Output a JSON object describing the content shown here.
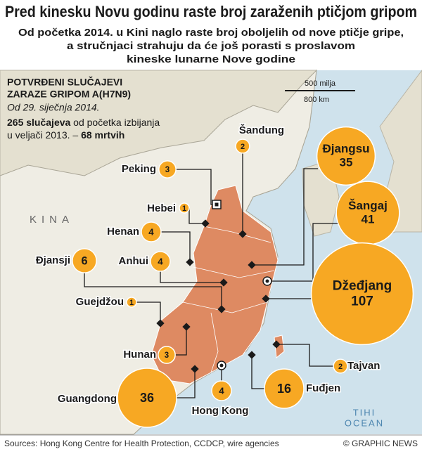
{
  "header": {
    "title": "Pred kinesku Novu godinu raste broj zaraženih ptičjom gripom",
    "subtitle_lines": [
      "Od početka 2014. u Kini naglo raste broj oboljelih od nove ptičje gripe,",
      "a stručnjaci strahuju da će još porasti s proslavom",
      "kineske lunarne Nove godine"
    ]
  },
  "panel": {
    "heading_lines": [
      "POTVRĐENI SLUČAJEVI",
      "ZARAZE GRIPOM A(H7N9)"
    ],
    "date": "Od 29. siječnja 2014.",
    "cases": "265 slučajeva",
    "cases_rest": " od početka izbijanja",
    "deaths_intro": "u veljači 2013. – ",
    "deaths": "68 mrtvih"
  },
  "scale": {
    "miles": "500 milja",
    "km": "800 km"
  },
  "map_labels": {
    "country": "KINA",
    "ocean_lines": [
      "TIHI",
      "OCEAN"
    ]
  },
  "provinces": [
    {
      "name": "Šandung",
      "cases": 2
    },
    {
      "name": "Peking",
      "cases": 3
    },
    {
      "name": "Hebei",
      "cases": 1
    },
    {
      "name": "Henan",
      "cases": 4
    },
    {
      "name": "Anhui",
      "cases": 4
    },
    {
      "name": "Đjansji",
      "cases": 6
    },
    {
      "name": "Guejdžou",
      "cases": 1
    },
    {
      "name": "Hunan",
      "cases": 3
    },
    {
      "name": "Guangdong",
      "cases": 36
    },
    {
      "name": "Hong Kong",
      "cases": 4
    },
    {
      "name": "Fuđjen",
      "cases": 16
    },
    {
      "name": "Tajvan",
      "cases": 2
    },
    {
      "name": "Đjangsu",
      "cases": 35
    },
    {
      "name": "Šangaj",
      "cases": 41
    },
    {
      "name": "Džeđjang",
      "cases": 107
    }
  ],
  "footer": {
    "sources": "Sources: Hong Kong Centre for Health Protection, CCDCP, wire agencies",
    "credit": "© GRAPHIC NEWS"
  }
}
